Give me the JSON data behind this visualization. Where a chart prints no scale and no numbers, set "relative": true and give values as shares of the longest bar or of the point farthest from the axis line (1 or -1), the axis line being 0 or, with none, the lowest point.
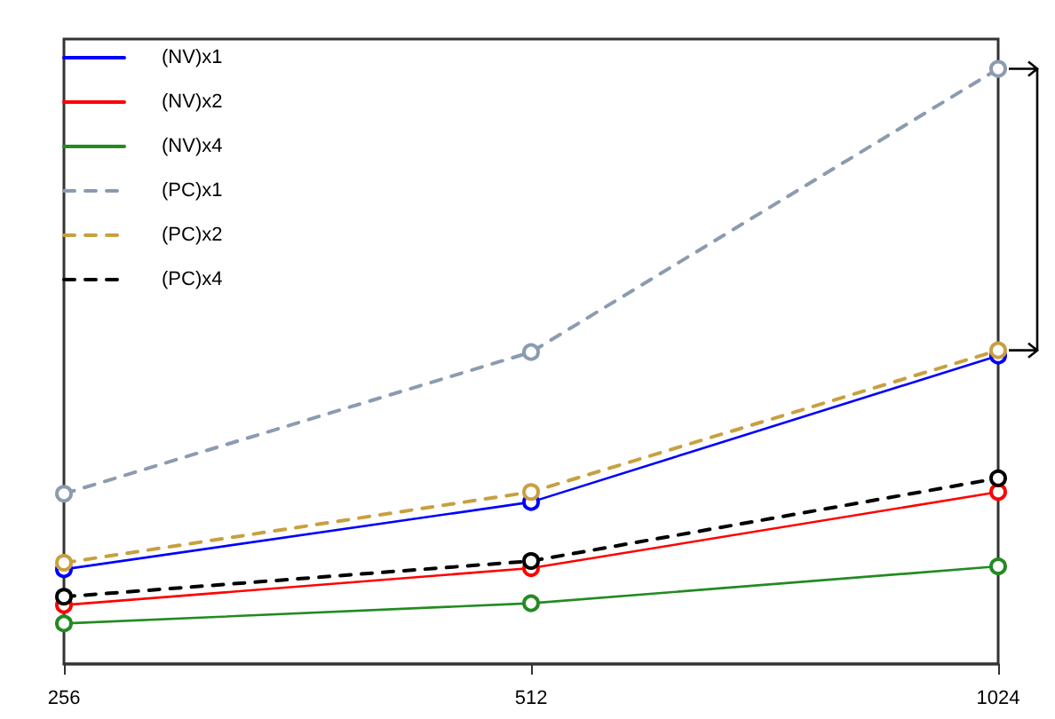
{
  "chart_data": {
    "type": "line",
    "relative": true,
    "categories": [
      "256",
      "512",
      "1024"
    ],
    "marker": "circle",
    "legend": "top left",
    "grid": false,
    "series": [
      {
        "name": "(NV)x1",
        "color": "#0000ff",
        "line_style": "solid",
        "values": [
          0.159,
          0.272,
          0.518
        ]
      },
      {
        "name": "(NV)x2",
        "color": "#ff0000",
        "line_style": "solid",
        "values": [
          0.099,
          0.161,
          0.289
        ]
      },
      {
        "name": "(NV)x4",
        "color": "#228b22",
        "line_style": "solid",
        "values": [
          0.068,
          0.102,
          0.164
        ]
      },
      {
        "name": "(PC)x1",
        "color": "#8c9bb0",
        "line_style": "dashed",
        "values": [
          0.286,
          0.524,
          1
        ]
      },
      {
        "name": "(PC)x2",
        "color": "#c8a040",
        "line_style": "dashed",
        "values": [
          0.17,
          0.289,
          0.527
        ]
      },
      {
        "name": "(PC)x4",
        "color": "#000000",
        "line_style": "dashed",
        "values": [
          0.113,
          0.173,
          0.312
        ]
      }
    ]
  }
}
